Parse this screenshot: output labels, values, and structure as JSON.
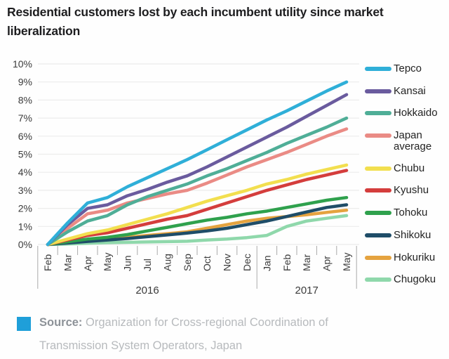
{
  "title": "Residential customers lost by each incumbent utility since market liberalization",
  "footer": {
    "source_label": "Source:",
    "source_text": " Organization for Cross-regional Coordination of Transmission System Operators, Japan",
    "accent_square_color": "#1f9fd9"
  },
  "colors": {
    "background": "#fefefe",
    "gridline": "#ececeb",
    "tick": "#aaaaaa",
    "axis_text": "#3b3b3b",
    "title_text": "#1d1d1f"
  },
  "chart_data": {
    "type": "line",
    "title": "Residential customers lost by each incumbent utility since market liberalization",
    "x": [
      "Feb",
      "Mar",
      "Apr",
      "May",
      "Jun",
      "Jul",
      "Aug",
      "Sep",
      "Oct",
      "Nov",
      "Dec",
      "Jan",
      "Feb",
      "Mar",
      "Apr",
      "May"
    ],
    "year_groups": [
      {
        "label": "2016",
        "span": 11
      },
      {
        "label": "2017",
        "span": 5
      }
    ],
    "ylim": [
      0,
      10
    ],
    "yticks": [
      "0%",
      "1%",
      "2%",
      "3%",
      "4%",
      "5%",
      "6%",
      "7%",
      "8%",
      "9%",
      "10%"
    ],
    "grid": true,
    "legend_position": "right",
    "units": "percent of residential customers lost",
    "series": [
      {
        "name": "Tepco",
        "color": "#2fafd8",
        "values": [
          0,
          1.2,
          2.3,
          2.6,
          3.2,
          3.7,
          4.2,
          4.7,
          5.25,
          5.8,
          6.35,
          6.9,
          7.4,
          7.95,
          8.5,
          9.0
        ]
      },
      {
        "name": "Kansai",
        "color": "#6a5b9e",
        "values": [
          0,
          1.1,
          2.0,
          2.2,
          2.7,
          3.05,
          3.45,
          3.8,
          4.3,
          4.85,
          5.4,
          5.95,
          6.5,
          7.1,
          7.7,
          8.3
        ]
      },
      {
        "name": "Hokkaido",
        "color": "#4fae97",
        "values": [
          0,
          0.7,
          1.3,
          1.6,
          2.2,
          2.65,
          3.0,
          3.35,
          3.8,
          4.2,
          4.65,
          5.1,
          5.6,
          6.05,
          6.5,
          7.0
        ]
      },
      {
        "name": "Japan average",
        "color": "#ea8b85",
        "values": [
          0,
          0.9,
          1.7,
          1.9,
          2.3,
          2.55,
          2.8,
          3.0,
          3.4,
          3.85,
          4.3,
          4.7,
          5.1,
          5.55,
          6.0,
          6.4
        ]
      },
      {
        "name": "Chubu",
        "color": "#f2df4f",
        "values": [
          0,
          0.3,
          0.6,
          0.8,
          1.1,
          1.4,
          1.7,
          2.05,
          2.4,
          2.7,
          3.0,
          3.35,
          3.6,
          3.9,
          4.15,
          4.4
        ]
      },
      {
        "name": "Kyushu",
        "color": "#d43d3c",
        "values": [
          0,
          0.25,
          0.5,
          0.65,
          0.9,
          1.15,
          1.4,
          1.6,
          1.95,
          2.3,
          2.65,
          3.0,
          3.3,
          3.6,
          3.85,
          4.1
        ]
      },
      {
        "name": "Tohoku",
        "color": "#2fa14d",
        "values": [
          0,
          0.15,
          0.3,
          0.4,
          0.55,
          0.75,
          0.95,
          1.15,
          1.35,
          1.5,
          1.7,
          1.85,
          2.05,
          2.25,
          2.45,
          2.6
        ]
      },
      {
        "name": "Shikoku",
        "color": "#1f4d68",
        "values": [
          0,
          0.08,
          0.17,
          0.25,
          0.33,
          0.43,
          0.53,
          0.63,
          0.75,
          0.9,
          1.1,
          1.3,
          1.55,
          1.8,
          2.05,
          2.2
        ]
      },
      {
        "name": "Hokuriku",
        "color": "#e5a33f",
        "values": [
          0,
          0.1,
          0.22,
          0.3,
          0.4,
          0.5,
          0.6,
          0.7,
          0.9,
          1.1,
          1.3,
          1.45,
          1.55,
          1.65,
          1.78,
          1.9
        ]
      },
      {
        "name": "Chugoku",
        "color": "#8fd8ab",
        "values": [
          0,
          0.03,
          0.07,
          0.1,
          0.12,
          0.14,
          0.16,
          0.18,
          0.25,
          0.3,
          0.38,
          0.5,
          1.0,
          1.3,
          1.45,
          1.6
        ]
      }
    ]
  }
}
